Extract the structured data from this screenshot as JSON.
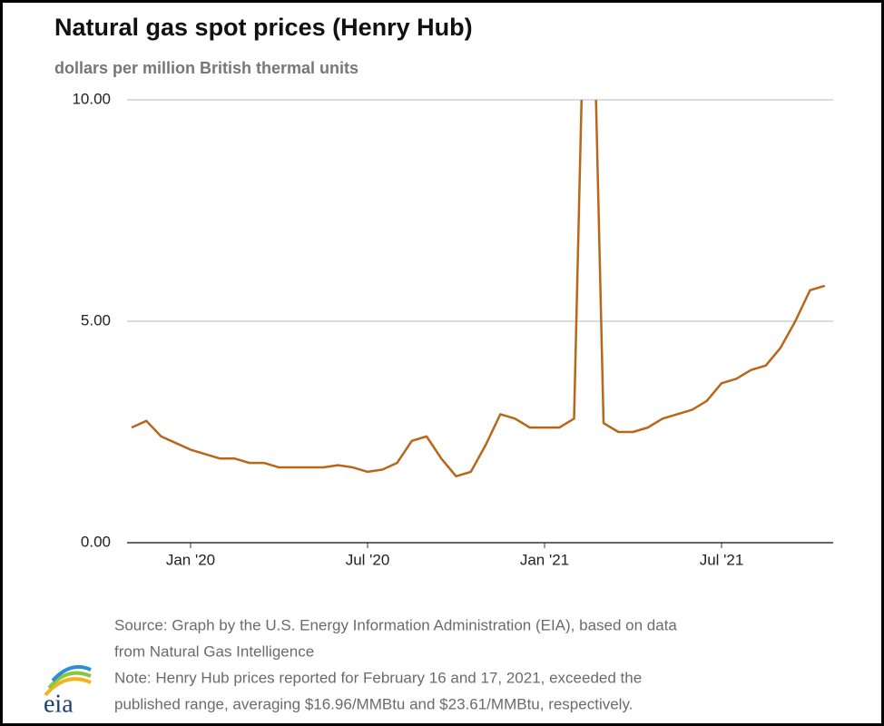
{
  "chart_data": {
    "type": "line",
    "title": "Natural gas spot prices (Henry Hub)",
    "subtitle": "dollars per million British thermal units",
    "categories": [
      null,
      null,
      null,
      null,
      "Jan '20",
      null,
      null,
      null,
      null,
      null,
      null,
      null,
      null,
      null,
      null,
      null,
      "Jul '20",
      null,
      null,
      null,
      null,
      null,
      null,
      null,
      null,
      null,
      null,
      null,
      "Jan '21",
      null,
      null,
      null,
      null,
      null,
      null,
      null,
      null,
      null,
      null,
      null,
      "Jul '21",
      null,
      null,
      null,
      null,
      null,
      null,
      null
    ],
    "series": [
      {
        "name": "Henry Hub",
        "color": "#b8661a",
        "values": [
          2.6,
          2.75,
          2.4,
          2.25,
          2.1,
          2.0,
          1.9,
          1.9,
          1.8,
          1.8,
          1.7,
          1.7,
          1.7,
          1.7,
          1.75,
          1.7,
          1.6,
          1.65,
          1.8,
          2.3,
          2.4,
          1.9,
          1.5,
          1.6,
          2.2,
          2.9,
          2.8,
          2.6,
          2.6,
          2.6,
          2.8,
          16.96,
          2.7,
          2.5,
          2.5,
          2.6,
          2.8,
          2.9,
          3.0,
          3.2,
          3.6,
          3.7,
          3.9,
          4.0,
          4.4,
          5.0,
          5.7,
          5.8
        ]
      }
    ],
    "ylim": [
      0,
      10
    ],
    "yticks": [
      {
        "value": 0,
        "label": "0.00"
      },
      {
        "value": 5,
        "label": "5.00"
      },
      {
        "value": 10,
        "label": "10.00"
      }
    ],
    "grid": true,
    "source": [
      "Source: Graph by the U.S. Energy Information Administration (EIA), based on data",
      "from Natural Gas Intelligence"
    ],
    "note": [
      "Note: Henry Hub prices reported for February 16 and 17, 2021, exceeded the",
      "published range, averaging $16.96/MMBtu and $23.61/MMBtu, respectively."
    ],
    "logo": "eia"
  }
}
